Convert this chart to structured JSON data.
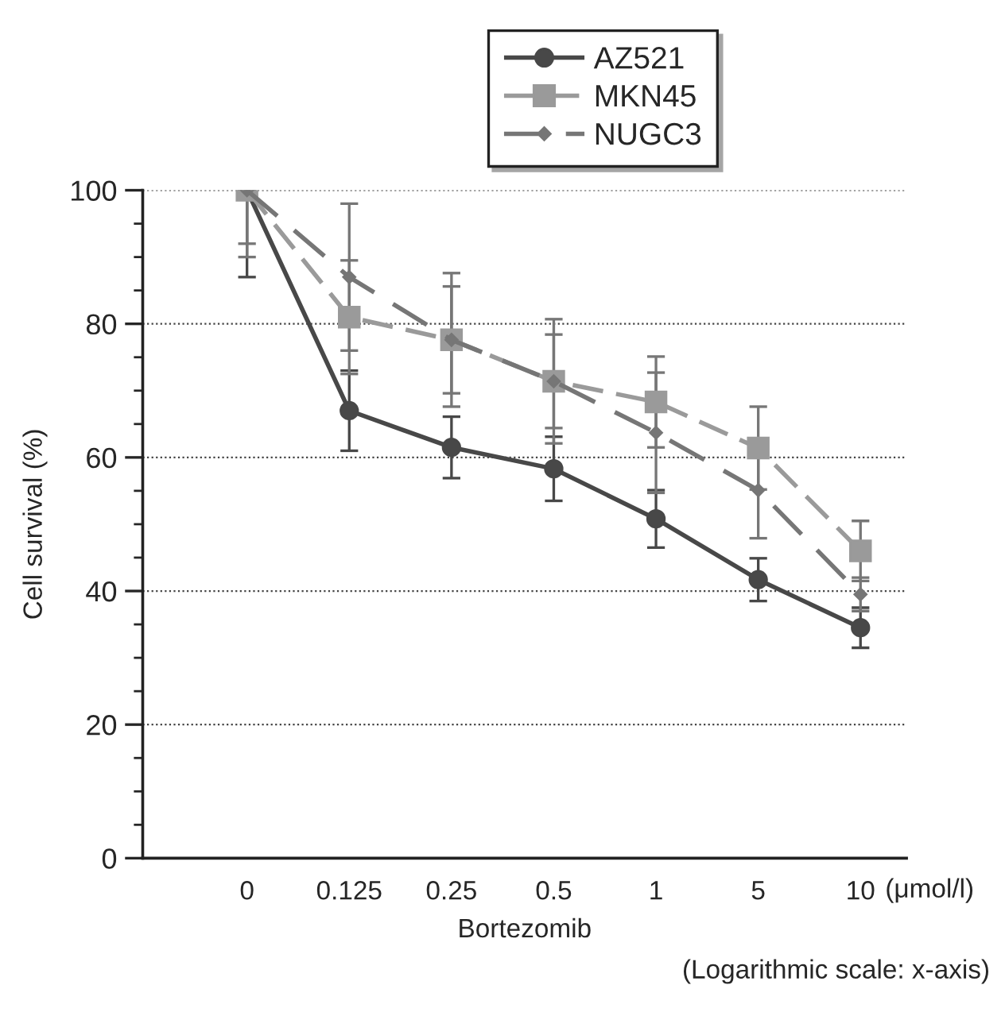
{
  "chart_data": {
    "type": "line",
    "categories": [
      "0",
      "0.125",
      "0.25",
      "0.5",
      "1",
      "5",
      "10"
    ],
    "xlabel": "Bortezomib",
    "ylabel": "Cell survival (%)",
    "annotations": [
      "(μmol/l)",
      "(Logarithmic scale: x-axis)"
    ],
    "ylim": [
      0,
      100
    ],
    "yticks": [
      0,
      20,
      40,
      60,
      80,
      100
    ],
    "grid": "y",
    "legend": "top",
    "series": [
      {
        "name": "AZ521",
        "color": "#484848",
        "marker": "circle",
        "line_style": "solid",
        "values": [
          100,
          67,
          61.5,
          58.3,
          50.8,
          41.7,
          34.5
        ],
        "errors": [
          13,
          6,
          4.6,
          4.8,
          4.3,
          3.2,
          3
        ]
      },
      {
        "name": "MKN45",
        "color": "#9a9a9a",
        "marker": "square",
        "line_style": "dashed",
        "values": [
          100,
          81,
          77.6,
          71.4,
          68.3,
          61.4,
          46
        ],
        "errors": [
          8,
          8.5,
          10,
          9.3,
          6.8,
          6.2,
          4.5
        ]
      },
      {
        "name": "NUGC3",
        "color": "#767676",
        "marker": "diamond",
        "line_style": "dashed",
        "values": [
          100,
          87,
          77.6,
          71.4,
          63.7,
          55.1,
          39.5
        ],
        "errors": [
          10,
          11,
          8,
          7,
          9,
          7.2,
          2.5
        ]
      }
    ]
  }
}
